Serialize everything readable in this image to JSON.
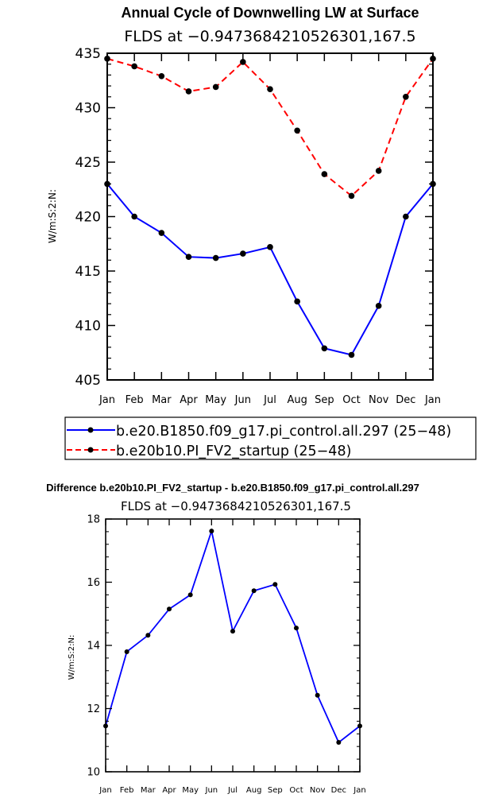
{
  "chart_data": [
    {
      "type": "line",
      "title": "Annual Cycle of Downwelling LW at Surface",
      "subtitle": "FLDS at −0.9473684210526301,167.5",
      "ylabel": "W/m:S:2:N:",
      "xlabel": "",
      "categories": [
        "Jan",
        "Feb",
        "Mar",
        "Apr",
        "May",
        "Jun",
        "Jul",
        "Aug",
        "Sep",
        "Oct",
        "Nov",
        "Dec",
        "Jan"
      ],
      "ylim": [
        405,
        435
      ],
      "yticks": [
        "405",
        "410",
        "415",
        "420",
        "425",
        "430",
        "435"
      ],
      "series": [
        {
          "name": "b.e20.B1850.f09_g17.pi_control.all.297 (25−48)",
          "color": "#0000ff",
          "dash": "solid",
          "values": [
            423.0,
            420.0,
            418.5,
            416.3,
            416.2,
            416.6,
            417.2,
            412.2,
            407.9,
            407.3,
            411.8,
            420.0,
            423.0
          ]
        },
        {
          "name": "b.e20b10.PI_FV2_startup (25−48)",
          "color": "#ff0000",
          "dash": "dashed",
          "values": [
            434.5,
            433.8,
            432.9,
            431.5,
            431.9,
            434.2,
            431.7,
            427.9,
            423.9,
            421.9,
            424.2,
            431.0,
            434.5
          ]
        }
      ]
    },
    {
      "type": "line",
      "title": "Difference b.e20b10.PI_FV2_startup - b.e20.B1850.f09_g17.pi_control.all.297",
      "subtitle": "FLDS at −0.9473684210526301,167.5",
      "ylabel": "W/m:S:2:N:",
      "xlabel": "",
      "categories": [
        "Jan",
        "Feb",
        "Mar",
        "Apr",
        "May",
        "Jun",
        "Jul",
        "Aug",
        "Sep",
        "Oct",
        "Nov",
        "Dec",
        "Jan"
      ],
      "ylim": [
        10,
        18
      ],
      "yticks": [
        "10",
        "12",
        "14",
        "16",
        "18"
      ],
      "series": [
        {
          "name": "Difference",
          "color": "#0000ff",
          "dash": "solid",
          "values": [
            11.45,
            13.8,
            14.32,
            15.15,
            15.6,
            17.62,
            14.45,
            15.73,
            15.93,
            14.55,
            12.42,
            10.93,
            11.45
          ]
        }
      ]
    }
  ]
}
